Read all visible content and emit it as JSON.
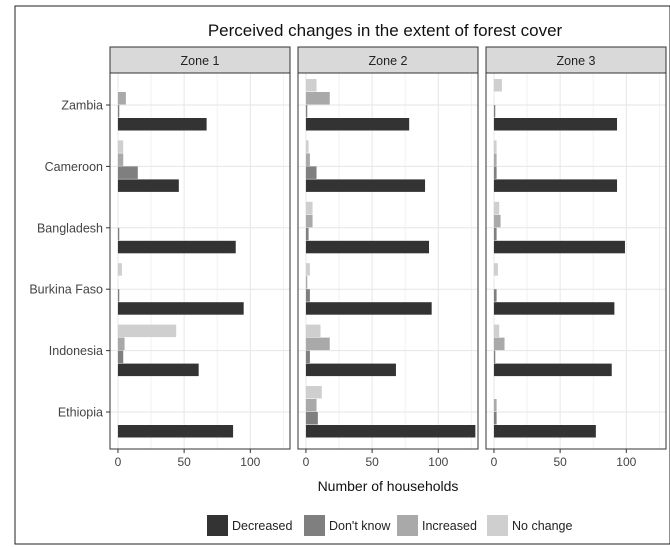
{
  "chart_data": {
    "type": "bar",
    "orientation": "horizontal",
    "title": "Perceived changes in the extent of forest cover",
    "xlabel": "Number of households",
    "ylabel": "",
    "categories": [
      "Zambia",
      "Cameroon",
      "Bangladesh",
      "Burkina Faso",
      "Indonesia",
      "Ethiopia"
    ],
    "xticks": [
      "0",
      "50",
      "100"
    ],
    "xlim": [
      -6,
      130
    ],
    "grid": true,
    "legend_position": "bottom",
    "colors": {
      "Decreased": "#333333",
      "Don't know": "#7f7f7f",
      "Increased": "#a9a9a9",
      "No change": "#cfcfcf"
    },
    "legend": [
      "Decreased",
      "Don't know",
      "Increased",
      "No change"
    ],
    "panels": [
      {
        "name": "Zone 1",
        "series": [
          {
            "name": "Decreased",
            "values": [
              67,
              46,
              89,
              95,
              61,
              87
            ]
          },
          {
            "name": "Don't know",
            "values": [
              1,
              15,
              1,
              1,
              4,
              0
            ]
          },
          {
            "name": "Increased",
            "values": [
              6,
              4,
              0,
              0,
              5,
              0
            ]
          },
          {
            "name": "No change",
            "values": [
              0,
              4,
              0,
              3,
              44,
              0
            ]
          }
        ]
      },
      {
        "name": "Zone 2",
        "series": [
          {
            "name": "Decreased",
            "values": [
              78,
              90,
              93,
              95,
              68,
              128
            ]
          },
          {
            "name": "Don't know",
            "values": [
              1,
              8,
              2,
              3,
              3,
              9
            ]
          },
          {
            "name": "Increased",
            "values": [
              18,
              3,
              5,
              1,
              18,
              8
            ]
          },
          {
            "name": "No change",
            "values": [
              8,
              2,
              5,
              3,
              11,
              12
            ]
          }
        ]
      },
      {
        "name": "Zone 3",
        "series": [
          {
            "name": "Decreased",
            "values": [
              93,
              93,
              99,
              91,
              89,
              77
            ]
          },
          {
            "name": "Don't know",
            "values": [
              1,
              2,
              2,
              2,
              1,
              2
            ]
          },
          {
            "name": "Increased",
            "values": [
              0,
              2,
              5,
              0,
              8,
              2
            ]
          },
          {
            "name": "No change",
            "values": [
              6,
              2,
              4,
              3,
              4,
              0
            ]
          }
        ]
      }
    ]
  }
}
